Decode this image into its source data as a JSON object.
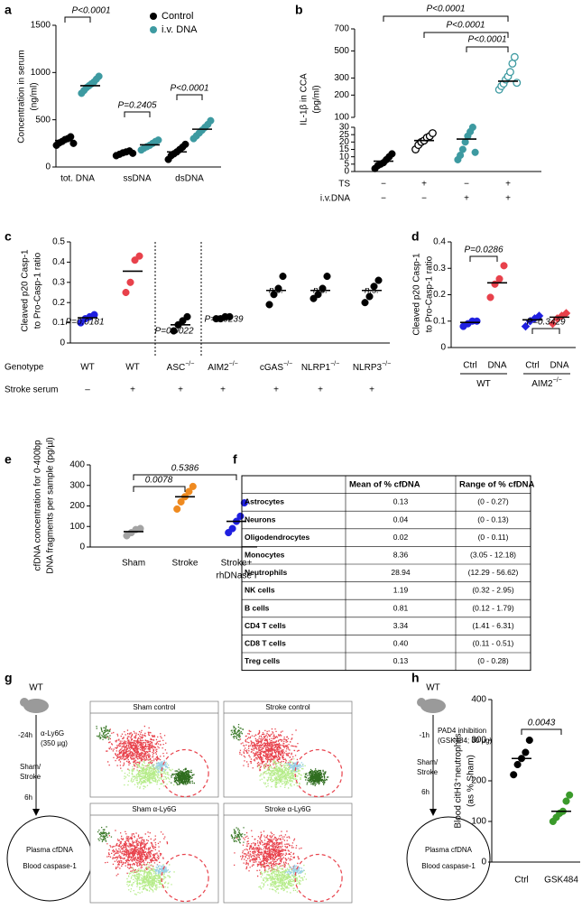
{
  "panel_labels": [
    "a",
    "b",
    "c",
    "d",
    "e",
    "f",
    "g",
    "h"
  ],
  "chart_data": [
    {
      "type": "strip",
      "ylabel": [
        "Concentration in serum",
        "(ng/ml)"
      ],
      "categories": [
        "tot. DNA",
        "ssDNA",
        "dsDNA"
      ],
      "ylim": [
        0,
        1500
      ],
      "yticks": [
        0,
        500,
        1000,
        1500
      ],
      "legend": "top-right",
      "series": [
        {
          "name": "Control",
          "color": "#000000",
          "values": [
            [
              230,
              255,
              270,
              290,
              300,
              320,
              250
            ],
            [
              120,
              135,
              150,
              160,
              170,
              145
            ],
            [
              80,
              120,
              140,
              160,
              185,
              210,
              240
            ]
          ],
          "means": [
            280,
            150,
            160
          ]
        },
        {
          "name": "i.v. DNA",
          "color": "#3d9aa1",
          "values": [
            [
              780,
              810,
              840,
              860,
              880,
              900,
              930,
              960
            ],
            [
              180,
              200,
              215,
              230,
              250,
              270,
              285
            ],
            [
              300,
              330,
              360,
              390,
              420,
              450,
              490
            ]
          ],
          "means": [
            860,
            235,
            400
          ]
        }
      ],
      "annotations": [
        "P<0.0001",
        "P=0.2405",
        "P<0.0001"
      ]
    },
    {
      "type": "strip",
      "ylabel": [
        "IL-1β in CCA",
        "(pg/ml)"
      ],
      "ylim": [
        0,
        30
      ],
      "yticks": [
        0,
        5,
        10,
        15,
        20,
        25,
        30
      ],
      "ylim_upper": [
        100,
        700
      ],
      "yticks_upper": [
        100,
        200,
        300,
        500,
        700
      ],
      "yscale_upper": "sqrt",
      "series": [
        {
          "color": [
            "#000000",
            "#000000",
            "#3d9aa1",
            "#3d9aa1"
          ],
          "open": [
            false,
            true,
            false,
            true
          ],
          "values": [
            [
              2,
              4,
              5,
              6,
              8,
              10,
              12
            ],
            [
              15,
              18,
              20,
              21,
              23,
              24,
              26
            ],
            [
              8,
              11,
              15,
              20,
              24,
              27,
              30,
              13
            ],
            [
              230,
              250,
              265,
              290,
              310,
              340,
              400,
              450,
              270
            ]
          ],
          "means": [
            7,
            21,
            22,
            280
          ]
        }
      ],
      "rows": [
        {
          "name": "TS",
          "labels": [
            "−",
            "+",
            "−",
            "+"
          ]
        },
        {
          "name": "i.v.DNA",
          "labels": [
            "−",
            "−",
            "+",
            "+"
          ]
        }
      ],
      "annotations": [
        "P<0.0001",
        "P<0.0001",
        "P<0.0001"
      ]
    },
    {
      "type": "strip",
      "ylabel": [
        "Cleaved p20 Casp-1",
        "to Pro-Casp-1 ratio"
      ],
      "xlabel": "Genotype",
      "categories": [
        "WT",
        "WT",
        "ASC",
        "AIM2",
        "cGAS",
        "NLRP1",
        "NLRP3"
      ],
      "category_superscripts": [
        null,
        null,
        "−/−",
        "−/−",
        "−/−",
        "−/−",
        "−/−"
      ],
      "ylim": [
        0,
        0.5
      ],
      "yticks": [
        0,
        0.1,
        0.2,
        0.3,
        0.4,
        0.5
      ],
      "series": [
        {
          "color": [
            "#1f1fe0",
            "#e8414b",
            "#000000",
            "#000000",
            "#000000",
            "#000000",
            "#000000"
          ],
          "values": [
            [
              0.1,
              0.12,
              0.13,
              0.14
            ],
            [
              0.25,
              0.3,
              0.41,
              0.43
            ],
            [
              0.06,
              0.09,
              0.11,
              0.13
            ],
            [
              0.12,
              0.12,
              0.13,
              0.13
            ],
            [
              0.19,
              0.24,
              0.27,
              0.33
            ],
            [
              0.22,
              0.24,
              0.27,
              0.33
            ],
            [
              0.2,
              0.23,
              0.28,
              0.31
            ]
          ],
          "means": [
            0.125,
            0.355,
            0.09,
            0.125,
            0.26,
            0.26,
            0.26
          ]
        }
      ],
      "rows": [
        {
          "name": "Stroke serum",
          "labels": [
            "–",
            "+",
            "+",
            "+",
            "+",
            "+",
            "+"
          ]
        }
      ],
      "annotations": [
        "P=0.0181",
        "P=0.0022",
        "P=0.0239",
        "n.s.",
        "n.s.",
        "n.s."
      ]
    },
    {
      "type": "strip",
      "ylabel": [
        "Cleaved p20 Casp-1",
        "to Pro-Casp-1 ratio"
      ],
      "categories": [
        "Ctrl",
        "DNA",
        "Ctrl",
        "DNA"
      ],
      "groups": [
        {
          "name": "WT"
        },
        {
          "name": "AIM2",
          "sup": "−/−"
        }
      ],
      "ylim": [
        0,
        0.4
      ],
      "yticks": [
        0,
        0.1,
        0.2,
        0.3,
        0.4
      ],
      "series": [
        {
          "color": [
            "#1f1fe0",
            "#e8414b",
            "#1f1fe0",
            "#e8414b"
          ],
          "markers": [
            "circle",
            "circle",
            "diamond",
            "diamond"
          ],
          "values": [
            [
              0.08,
              0.09,
              0.1,
              0.1
            ],
            [
              0.19,
              0.24,
              0.26,
              0.31
            ],
            [
              0.08,
              0.1,
              0.11,
              0.12
            ],
            [
              0.09,
              0.11,
              0.12,
              0.13
            ]
          ],
          "means": [
            0.095,
            0.245,
            0.105,
            0.115
          ]
        }
      ],
      "annotations": [
        "P=0.0286",
        "P=0.3429"
      ]
    },
    {
      "type": "strip",
      "ylabel": [
        "cfDNA concentration for 0-400bp",
        "DNA fragments per sample (pg/µl)"
      ],
      "categories": [
        "Sham",
        "Stroke",
        [
          "Stroke+",
          "rhDNase I"
        ]
      ],
      "ylim": [
        0,
        400
      ],
      "yticks": [
        0,
        100,
        200,
        300,
        400
      ],
      "series": [
        {
          "color": [
            "#a3a3a3",
            "#ef8a1f",
            "#1f1fe0"
          ],
          "values": [
            [
              55,
              70,
              85,
              90
            ],
            [
              185,
              220,
              245,
              270,
              295
            ],
            [
              70,
              90,
              125,
              150,
              215
            ]
          ],
          "means": [
            75,
            245,
            125
          ]
        }
      ],
      "annotations": [
        "0.0078",
        "0.5386"
      ]
    },
    {
      "type": "strip",
      "ylabel": [
        "Blood citH3⁺neutrophils",
        "(as % Sham)"
      ],
      "categories": [
        "Ctrl",
        "GSK484"
      ],
      "ylim": [
        0,
        400
      ],
      "yticks": [
        0,
        100,
        200,
        300,
        400
      ],
      "series": [
        {
          "color": [
            "#000000",
            "#3a9a2a"
          ],
          "values": [
            [
              215,
              240,
              255,
              270,
              300
            ],
            [
              100,
              110,
              120,
              125,
              150,
              165
            ]
          ],
          "means": [
            255,
            125
          ]
        }
      ],
      "annotations": [
        "0.0043"
      ]
    }
  ],
  "table": {
    "header": [
      "Mean of % cfDNA",
      "Range of % cfDNA"
    ],
    "rows": [
      [
        "Astrocytes",
        "0.13",
        "(0 - 0.27)"
      ],
      [
        "Neurons",
        "0.04",
        "(0 - 0.13)"
      ],
      [
        "Oligodendrocytes",
        "0.02",
        "(0 - 0.11)"
      ],
      [
        "Monocytes",
        "8.36",
        "(3.05 - 12.18)"
      ],
      [
        "Neutrophils",
        "28.94",
        "(12.29 - 56.62)"
      ],
      [
        "NK cells",
        "1.19",
        "(0.32 - 2.95)"
      ],
      [
        "B cells",
        "0.81",
        "(0.12 - 1.79)"
      ],
      [
        "CD4 T cells",
        "3.34",
        "(1.41 - 6.31)"
      ],
      [
        "CD8 T cells",
        "0.40",
        "(0.11 - 0.51)"
      ],
      [
        "Treg cells",
        "0.13",
        "(0 - 0.28)"
      ]
    ]
  },
  "panel_g": {
    "mouse": "WT",
    "time": "-24h",
    "treatment": [
      "α-Ly6G",
      "(350 µg)"
    ],
    "surgery": [
      "Sham/",
      "Stroke"
    ],
    "interval": "6h",
    "readouts": [
      "Plasma cfDNA",
      "Blood caspase-1"
    ],
    "tsne_titles": [
      "Sham control",
      "Stroke control",
      "Sham α-Ly6G",
      "Stroke α-Ly6G"
    ]
  },
  "panel_h": {
    "mouse": "WT",
    "time": "-1h",
    "treatment": [
      "PAD4 inhibition",
      "(GSK484; 50 µg)"
    ],
    "surgery": [
      "Sham/",
      "Stroke"
    ],
    "interval": "6h",
    "readouts": [
      "Plasma cfDNA",
      "Blood caspase-1"
    ]
  }
}
